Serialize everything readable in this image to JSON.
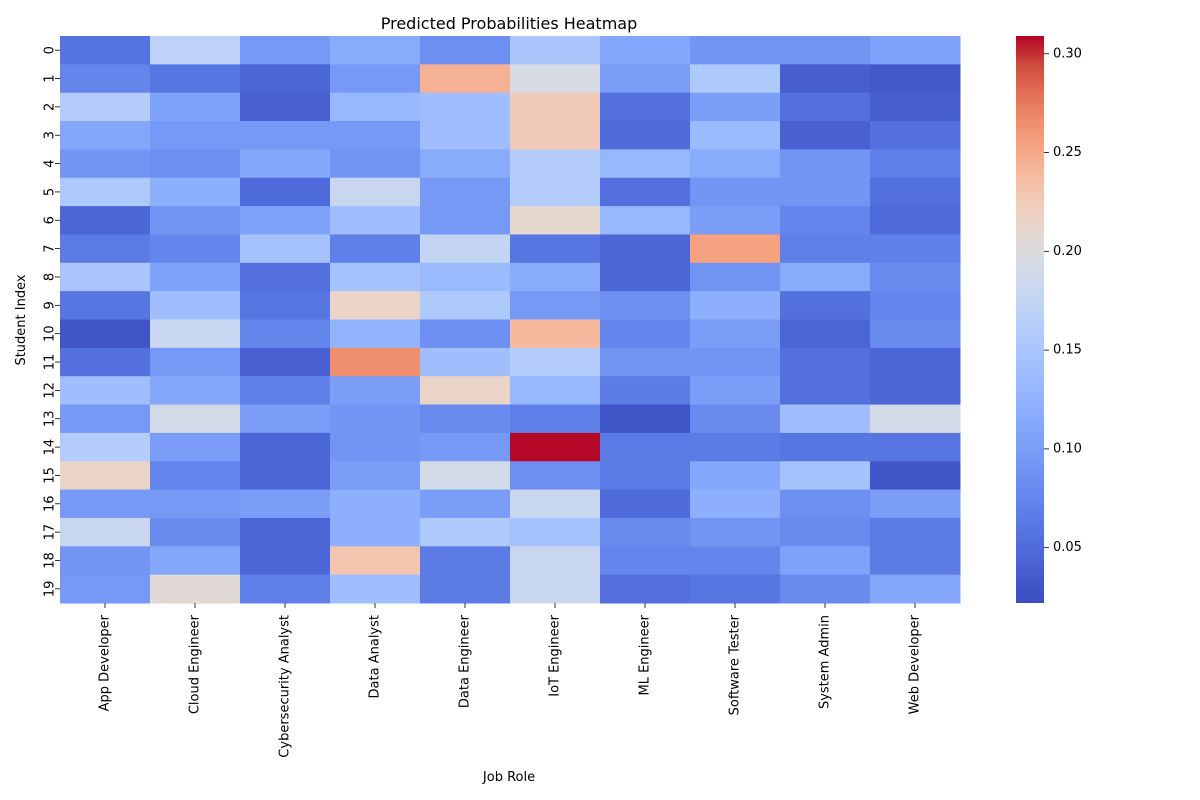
{
  "chart_data": {
    "type": "heatmap",
    "title": "Predicted Probabilities Heatmap",
    "xlabel": "Job Role",
    "ylabel": "Student Index",
    "columns": [
      "App Developer",
      "Cloud Engineer",
      "Cybersecurity Analyst",
      "Data Analyst",
      "Data Engineer",
      "IoT Engineer",
      "ML Engineer",
      "Software Tester",
      "System Admin",
      "Web Developer"
    ],
    "rows": [
      "0",
      "1",
      "2",
      "3",
      "4",
      "5",
      "6",
      "7",
      "8",
      "9",
      "10",
      "11",
      "12",
      "13",
      "14",
      "15",
      "16",
      "17",
      "18",
      "19"
    ],
    "values": [
      [
        0.058,
        0.17,
        0.095,
        0.115,
        0.085,
        0.15,
        0.11,
        0.09,
        0.09,
        0.105
      ],
      [
        0.075,
        0.06,
        0.045,
        0.095,
        0.245,
        0.195,
        0.1,
        0.155,
        0.038,
        0.033
      ],
      [
        0.16,
        0.105,
        0.04,
        0.13,
        0.14,
        0.225,
        0.055,
        0.1,
        0.055,
        0.038
      ],
      [
        0.11,
        0.095,
        0.095,
        0.095,
        0.14,
        0.225,
        0.05,
        0.135,
        0.04,
        0.055
      ],
      [
        0.09,
        0.085,
        0.11,
        0.09,
        0.115,
        0.16,
        0.13,
        0.115,
        0.09,
        0.07
      ],
      [
        0.155,
        0.12,
        0.05,
        0.18,
        0.095,
        0.16,
        0.055,
        0.09,
        0.09,
        0.055
      ],
      [
        0.045,
        0.09,
        0.105,
        0.14,
        0.095,
        0.21,
        0.13,
        0.1,
        0.075,
        0.05
      ],
      [
        0.065,
        0.075,
        0.145,
        0.07,
        0.175,
        0.06,
        0.045,
        0.255,
        0.07,
        0.07
      ],
      [
        0.15,
        0.105,
        0.055,
        0.145,
        0.135,
        0.115,
        0.045,
        0.09,
        0.115,
        0.08
      ],
      [
        0.06,
        0.14,
        0.06,
        0.215,
        0.155,
        0.095,
        0.085,
        0.12,
        0.055,
        0.075
      ],
      [
        0.03,
        0.18,
        0.075,
        0.125,
        0.085,
        0.24,
        0.075,
        0.1,
        0.045,
        0.08
      ],
      [
        0.055,
        0.095,
        0.04,
        0.265,
        0.14,
        0.16,
        0.09,
        0.09,
        0.055,
        0.045
      ],
      [
        0.14,
        0.11,
        0.07,
        0.1,
        0.215,
        0.13,
        0.065,
        0.1,
        0.055,
        0.045
      ],
      [
        0.095,
        0.19,
        0.1,
        0.09,
        0.08,
        0.07,
        0.03,
        0.08,
        0.14,
        0.19
      ],
      [
        0.16,
        0.1,
        0.045,
        0.09,
        0.095,
        0.308,
        0.065,
        0.065,
        0.06,
        0.06
      ],
      [
        0.215,
        0.075,
        0.045,
        0.1,
        0.19,
        0.085,
        0.065,
        0.11,
        0.145,
        0.03
      ],
      [
        0.095,
        0.095,
        0.1,
        0.12,
        0.1,
        0.18,
        0.05,
        0.12,
        0.085,
        0.1
      ],
      [
        0.18,
        0.08,
        0.045,
        0.12,
        0.155,
        0.145,
        0.08,
        0.09,
        0.08,
        0.065
      ],
      [
        0.09,
        0.11,
        0.045,
        0.23,
        0.065,
        0.18,
        0.075,
        0.075,
        0.105,
        0.065
      ],
      [
        0.095,
        0.205,
        0.07,
        0.14,
        0.065,
        0.18,
        0.055,
        0.06,
        0.08,
        0.11
      ]
    ],
    "colorbar": {
      "colormap": "coolwarm",
      "vmin": 0.022,
      "vmax": 0.309,
      "ticks": [
        0.05,
        0.1,
        0.15,
        0.2,
        0.25,
        0.3
      ],
      "tick_labels": [
        "0.05",
        "0.10",
        "0.15",
        "0.20",
        "0.25",
        "0.30"
      ]
    },
    "grid": false
  }
}
